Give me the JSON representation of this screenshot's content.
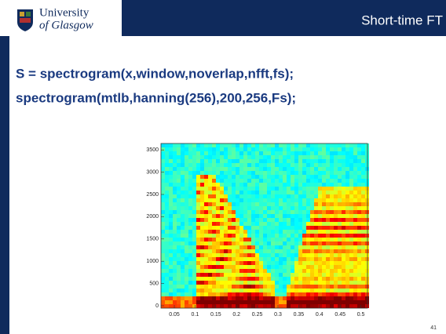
{
  "header": {
    "logo_line1": "University",
    "logo_line2": "of Glasgow",
    "title": "Short-time FT"
  },
  "code_lines": [
    "S = spectrogram(x,window,noverlap,nfft,fs);",
    "spectrogram(mtlb,hanning(256),200,256,Fs);"
  ],
  "figure": {
    "yticks": [
      0,
      500,
      1000,
      1500,
      2000,
      2500,
      3000,
      3500
    ],
    "xticks": [
      0.05,
      0.1,
      0.15,
      0.2,
      0.25,
      0.3,
      0.35,
      0.4,
      0.45,
      0.5
    ]
  },
  "page_number": "41"
}
